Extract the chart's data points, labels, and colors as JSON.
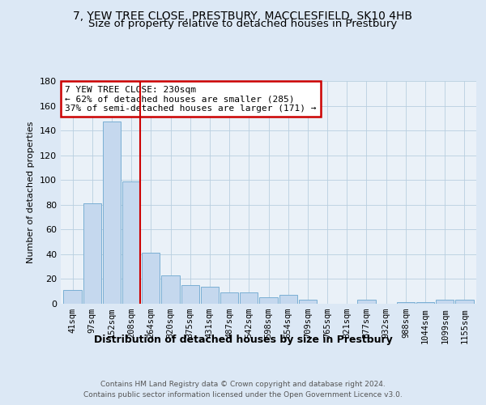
{
  "title": "7, YEW TREE CLOSE, PRESTBURY, MACCLESFIELD, SK10 4HB",
  "subtitle": "Size of property relative to detached houses in Prestbury",
  "xlabel": "Distribution of detached houses by size in Prestbury",
  "ylabel": "Number of detached properties",
  "categories": [
    "41sqm",
    "97sqm",
    "152sqm",
    "208sqm",
    "264sqm",
    "320sqm",
    "375sqm",
    "431sqm",
    "487sqm",
    "542sqm",
    "598sqm",
    "654sqm",
    "709sqm",
    "765sqm",
    "821sqm",
    "877sqm",
    "932sqm",
    "988sqm",
    "1044sqm",
    "1099sqm",
    "1155sqm"
  ],
  "values": [
    11,
    81,
    147,
    99,
    41,
    23,
    15,
    14,
    9,
    9,
    5,
    7,
    3,
    0,
    0,
    3,
    0,
    1,
    1,
    3,
    3
  ],
  "bar_color": "#c5d8ee",
  "bar_edgecolor": "#7aafd4",
  "vline_color": "#cc0000",
  "annotation_line1": "7 YEW TREE CLOSE: 230sqm",
  "annotation_line2": "← 62% of detached houses are smaller (285)",
  "annotation_line3": "37% of semi-detached houses are larger (171) →",
  "annotation_box_facecolor": "white",
  "annotation_box_edgecolor": "#cc0000",
  "ylim": [
    0,
    180
  ],
  "yticks": [
    0,
    20,
    40,
    60,
    80,
    100,
    120,
    140,
    160,
    180
  ],
  "background_color": "#dce8f5",
  "plot_background": "#eaf1f8",
  "grid_color": "#b8cfe0",
  "title_fontsize": 10,
  "subtitle_fontsize": 9.5,
  "xlabel_fontsize": 9,
  "ylabel_fontsize": 8,
  "tick_fontsize": 7.5,
  "footer": "Contains HM Land Registry data © Crown copyright and database right 2024.\nContains public sector information licensed under the Open Government Licence v3.0.",
  "footer_fontsize": 6.5
}
